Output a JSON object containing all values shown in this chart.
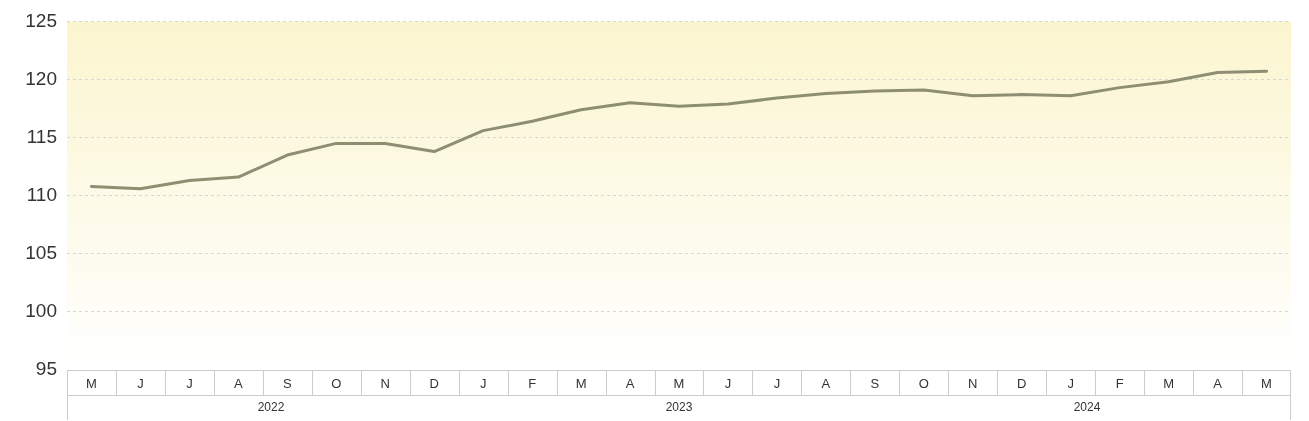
{
  "chart_data": {
    "type": "line",
    "categories": [
      "M",
      "J",
      "J",
      "A",
      "S",
      "O",
      "N",
      "D",
      "J",
      "F",
      "M",
      "A",
      "M",
      "J",
      "J",
      "A",
      "S",
      "O",
      "N",
      "D",
      "J",
      "F",
      "M",
      "A",
      "M"
    ],
    "series": [
      {
        "color": "#8e8f72",
        "values": [
          110.8,
          110.6,
          111.3,
          111.6,
          113.5,
          114.5,
          114.5,
          113.8,
          115.6,
          116.4,
          117.4,
          118.0,
          117.7,
          117.9,
          118.4,
          118.8,
          119.0,
          119.1,
          118.6,
          118.7,
          118.6,
          119.3,
          119.8,
          120.6,
          120.7
        ]
      }
    ],
    "annotations": [
      "2022",
      "2023",
      "2024"
    ],
    "ylim": [
      95,
      125
    ],
    "yticks": [
      95,
      100,
      105,
      110,
      115,
      120,
      125
    ],
    "grid": "y",
    "marker": "none",
    "line_style": "solid"
  }
}
